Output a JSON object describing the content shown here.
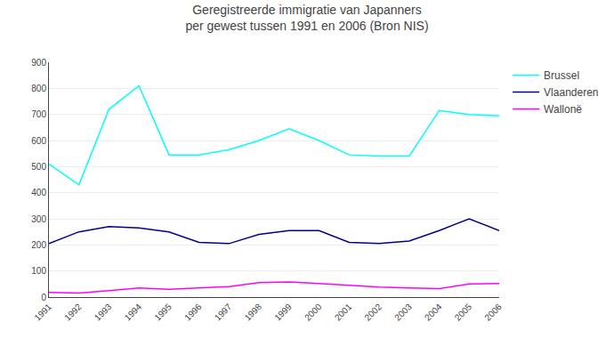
{
  "chart_data": {
    "type": "line",
    "title": "Geregistreerde immigratie van Japanners",
    "subtitle": "per gewest tussen 1991 en 2006 (Bron NIS)",
    "x": [
      1991,
      1992,
      1993,
      1994,
      1995,
      1996,
      1997,
      1998,
      1999,
      2000,
      2001,
      2002,
      2003,
      2004,
      2005,
      2006
    ],
    "series": [
      {
        "name": "Brussel",
        "color": "#00FFFF",
        "values": [
          510,
          430,
          720,
          810,
          545,
          545,
          565,
          600,
          645,
          600,
          545,
          540,
          540,
          715,
          700,
          695
        ]
      },
      {
        "name": "Vlaanderen",
        "color": "#00008B",
        "values": [
          205,
          250,
          270,
          265,
          250,
          210,
          205,
          240,
          255,
          255,
          210,
          205,
          215,
          255,
          300,
          255
        ]
      },
      {
        "name": "Wallonë",
        "color": "#FF00FF",
        "values": [
          18,
          15,
          25,
          35,
          30,
          35,
          40,
          55,
          58,
          52,
          45,
          38,
          35,
          32,
          50,
          52
        ]
      }
    ],
    "xlim": [
      1991,
      2006
    ],
    "xticks": [
      1991,
      1992,
      1993,
      1994,
      1995,
      1996,
      1997,
      1998,
      1999,
      2000,
      2001,
      2002,
      2003,
      2004,
      2005,
      2006
    ],
    "ylim": [
      0,
      900
    ],
    "yticks": [
      0,
      100,
      200,
      300,
      400,
      500,
      600,
      700,
      800,
      900
    ],
    "grid": true,
    "legend": "right"
  }
}
